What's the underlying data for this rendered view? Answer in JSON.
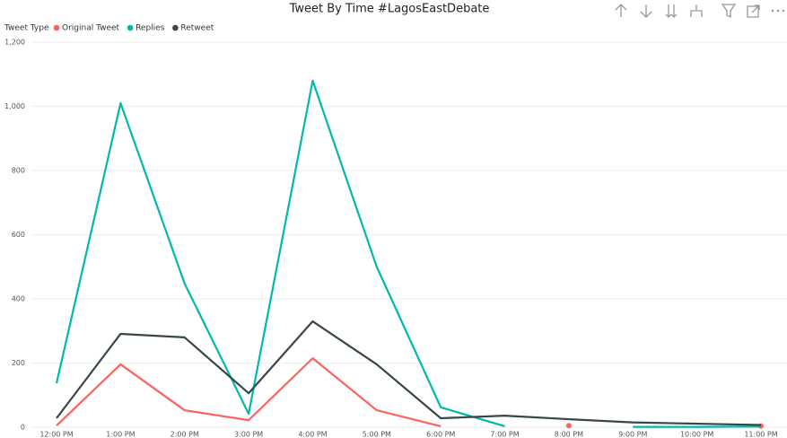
{
  "chart_data": {
    "type": "line",
    "title": "Tweet By Time #LagosEastDebate",
    "legend_title": "Tweet Type",
    "categories": [
      "12:00 PM",
      "1:00 PM",
      "2:00 PM",
      "3:00 PM",
      "4:00 PM",
      "5:00 PM",
      "6:00 PM",
      "7:00 PM",
      "8:00 PM",
      "9:00 PM",
      "10:00 PM",
      "11:00 PM"
    ],
    "series": [
      {
        "name": "Original Tweet",
        "color": "#fd625e",
        "values": [
          5,
          196,
          53,
          22,
          215,
          53,
          3,
          null,
          5,
          null,
          null,
          4
        ]
      },
      {
        "name": "Replies",
        "color": "#01b8aa",
        "values": [
          137,
          1010,
          448,
          42,
          1080,
          500,
          62,
          3,
          null,
          1,
          1,
          2
        ]
      },
      {
        "name": "Retweet",
        "color": "#374649",
        "values": [
          28,
          291,
          280,
          106,
          330,
          196,
          28,
          36,
          25,
          15,
          11,
          7
        ]
      }
    ],
    "ylim": [
      0,
      1200
    ],
    "yticks": [
      0,
      200,
      400,
      600,
      800,
      {
        "value": 1000,
        "label": "1,000"
      },
      {
        "value": 1200,
        "label": "1,200"
      }
    ],
    "grid": true,
    "legend": "top-left"
  }
}
